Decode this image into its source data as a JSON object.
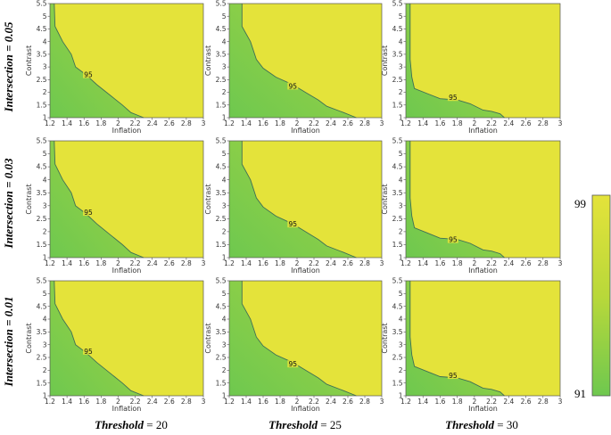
{
  "colors": {
    "low": "#6ec84f",
    "mid": "#b9d83a",
    "high": "#e4e33a",
    "contour": "#3f6f55",
    "frame": "#555555"
  },
  "grid": {
    "rows": [
      {
        "value": "0.05",
        "label": "Intersection = 0.05"
      },
      {
        "value": "0.03",
        "label": "Intersection = 0.03"
      },
      {
        "value": "0.01",
        "label": "Intersection = 0.01"
      }
    ],
    "cols": [
      {
        "value": "20",
        "label": "Threshold = 20"
      },
      {
        "value": "25",
        "label": "Threshold = 25"
      },
      {
        "value": "30",
        "label": "Threshold = 30"
      }
    ],
    "row_prefix": "Intersection",
    "col_prefix": "Threshold"
  },
  "colorbar": {
    "min": 91,
    "max": 99,
    "top_label": "99",
    "bottom_label": "91"
  },
  "chart_data": [
    {
      "type": "heatmap",
      "threshold": 20,
      "intersection": 0.05,
      "xlabel": "Inflation",
      "ylabel": "Contrast",
      "xlim": [
        1.2,
        3
      ],
      "ylim": [
        1,
        5.5
      ],
      "contour_level": 95,
      "contour_label": "95",
      "xticks": [
        1.2,
        1.4,
        1.6,
        1.8,
        2,
        2.2,
        2.4,
        2.6,
        2.8,
        3
      ],
      "yticks": [
        1,
        1.5,
        2,
        2.5,
        3,
        3.5,
        4,
        4.5,
        5,
        5.5
      ],
      "contour": [
        [
          1.25,
          5.5
        ],
        [
          1.26,
          4.6
        ],
        [
          1.35,
          4.0
        ],
        [
          1.45,
          3.5
        ],
        [
          1.5,
          3.0
        ],
        [
          1.62,
          2.7
        ],
        [
          1.75,
          2.3
        ],
        [
          1.9,
          1.9
        ],
        [
          2.05,
          1.5
        ],
        [
          2.15,
          1.2
        ],
        [
          2.3,
          1.0
        ]
      ],
      "label_at": [
        1.65,
        2.7
      ]
    },
    {
      "type": "heatmap",
      "threshold": 25,
      "intersection": 0.05,
      "xlabel": "Inflation",
      "ylabel": "Contrast",
      "xlim": [
        1.2,
        3
      ],
      "ylim": [
        1,
        5.5
      ],
      "contour_level": 95,
      "contour_label": "95",
      "xticks": [
        1.2,
        1.4,
        1.6,
        1.8,
        2,
        2.2,
        2.4,
        2.6,
        2.8,
        3
      ],
      "yticks": [
        1,
        1.5,
        2,
        2.5,
        3,
        3.5,
        4,
        4.5,
        5,
        5.5
      ],
      "contour": [
        [
          1.35,
          5.5
        ],
        [
          1.35,
          4.6
        ],
        [
          1.45,
          4.0
        ],
        [
          1.52,
          3.3
        ],
        [
          1.6,
          2.95
        ],
        [
          1.75,
          2.6
        ],
        [
          1.95,
          2.3
        ],
        [
          2.1,
          2.0
        ],
        [
          2.25,
          1.7
        ],
        [
          2.35,
          1.45
        ],
        [
          2.55,
          1.2
        ],
        [
          2.7,
          1.0
        ]
      ],
      "label_at": [
        1.95,
        2.25
      ]
    },
    {
      "type": "heatmap",
      "threshold": 30,
      "intersection": 0.05,
      "xlabel": "Inflation",
      "ylabel": "Contrast",
      "xlim": [
        1.2,
        3
      ],
      "ylim": [
        1,
        5.5
      ],
      "contour_level": 95,
      "contour_label": "95",
      "xticks": [
        1.2,
        1.4,
        1.6,
        1.8,
        2,
        2.2,
        2.4,
        2.6,
        2.8,
        3
      ],
      "yticks": [
        1,
        1.5,
        2,
        2.5,
        3,
        3.5,
        4,
        4.5,
        5,
        5.5
      ],
      "contour": [
        [
          1.25,
          5.5
        ],
        [
          1.25,
          3.3
        ],
        [
          1.27,
          2.6
        ],
        [
          1.3,
          2.15
        ],
        [
          1.45,
          1.95
        ],
        [
          1.6,
          1.75
        ],
        [
          1.8,
          1.7
        ],
        [
          1.95,
          1.55
        ],
        [
          2.1,
          1.3
        ],
        [
          2.2,
          1.25
        ],
        [
          2.3,
          1.15
        ],
        [
          2.35,
          1.0
        ]
      ],
      "label_at": [
        1.75,
        1.8
      ]
    },
    {
      "type": "heatmap",
      "threshold": 20,
      "intersection": 0.03,
      "xlabel": "Inflation",
      "ylabel": "Contrast",
      "xlim": [
        1.2,
        3
      ],
      "ylim": [
        1,
        5.5
      ],
      "contour_level": 95,
      "contour_label": "95",
      "xticks": [
        1.2,
        1.4,
        1.6,
        1.8,
        2,
        2.2,
        2.4,
        2.6,
        2.8,
        3
      ],
      "yticks": [
        1,
        1.5,
        2,
        2.5,
        3,
        3.5,
        4,
        4.5,
        5,
        5.5
      ],
      "contour": [
        [
          1.25,
          5.5
        ],
        [
          1.26,
          4.6
        ],
        [
          1.35,
          4.0
        ],
        [
          1.45,
          3.5
        ],
        [
          1.5,
          3.0
        ],
        [
          1.62,
          2.7
        ],
        [
          1.75,
          2.3
        ],
        [
          1.9,
          1.9
        ],
        [
          2.05,
          1.5
        ],
        [
          2.15,
          1.2
        ],
        [
          2.3,
          1.0
        ]
      ],
      "label_at": [
        1.65,
        2.75
      ]
    },
    {
      "type": "heatmap",
      "threshold": 25,
      "intersection": 0.03,
      "xlabel": "Inflation",
      "ylabel": "Contrast",
      "xlim": [
        1.2,
        3
      ],
      "ylim": [
        1,
        5.5
      ],
      "contour_level": 95,
      "contour_label": "95",
      "xticks": [
        1.2,
        1.4,
        1.6,
        1.8,
        2,
        2.2,
        2.4,
        2.6,
        2.8,
        3
      ],
      "yticks": [
        1,
        1.5,
        2,
        2.5,
        3,
        3.5,
        4,
        4.5,
        5,
        5.5
      ],
      "contour": [
        [
          1.35,
          5.5
        ],
        [
          1.35,
          4.6
        ],
        [
          1.45,
          4.0
        ],
        [
          1.52,
          3.3
        ],
        [
          1.6,
          2.95
        ],
        [
          1.75,
          2.6
        ],
        [
          1.95,
          2.3
        ],
        [
          2.1,
          2.0
        ],
        [
          2.25,
          1.7
        ],
        [
          2.35,
          1.45
        ],
        [
          2.55,
          1.2
        ],
        [
          2.7,
          1.0
        ]
      ],
      "label_at": [
        1.95,
        2.3
      ]
    },
    {
      "type": "heatmap",
      "threshold": 30,
      "intersection": 0.03,
      "xlabel": "Inflation",
      "ylabel": "Contrast",
      "xlim": [
        1.2,
        3
      ],
      "ylim": [
        1,
        5.5
      ],
      "contour_level": 95,
      "contour_label": "95",
      "xticks": [
        1.2,
        1.4,
        1.6,
        1.8,
        2,
        2.2,
        2.4,
        2.6,
        2.8,
        3
      ],
      "yticks": [
        1,
        1.5,
        2,
        2.5,
        3,
        3.5,
        4,
        4.5,
        5,
        5.5
      ],
      "contour": [
        [
          1.25,
          5.5
        ],
        [
          1.25,
          3.3
        ],
        [
          1.27,
          2.6
        ],
        [
          1.3,
          2.15
        ],
        [
          1.45,
          1.95
        ],
        [
          1.6,
          1.75
        ],
        [
          1.8,
          1.7
        ],
        [
          1.95,
          1.55
        ],
        [
          2.1,
          1.3
        ],
        [
          2.2,
          1.25
        ],
        [
          2.3,
          1.15
        ],
        [
          2.35,
          1.0
        ]
      ],
      "label_at": [
        1.75,
        1.7
      ]
    },
    {
      "type": "heatmap",
      "threshold": 20,
      "intersection": 0.01,
      "xlabel": "Inflation",
      "ylabel": "Contrast",
      "xlim": [
        1.2,
        3
      ],
      "ylim": [
        1,
        5.5
      ],
      "contour_level": 95,
      "contour_label": "95",
      "xticks": [
        1.2,
        1.4,
        1.6,
        1.8,
        2,
        2.2,
        2.4,
        2.6,
        2.8,
        3
      ],
      "yticks": [
        1,
        1.5,
        2,
        2.5,
        3,
        3.5,
        4,
        4.5,
        5,
        5.5
      ],
      "contour": [
        [
          1.25,
          5.5
        ],
        [
          1.26,
          4.6
        ],
        [
          1.35,
          4.0
        ],
        [
          1.45,
          3.5
        ],
        [
          1.5,
          3.0
        ],
        [
          1.62,
          2.7
        ],
        [
          1.75,
          2.3
        ],
        [
          1.9,
          1.9
        ],
        [
          2.05,
          1.5
        ],
        [
          2.15,
          1.2
        ],
        [
          2.3,
          1.0
        ]
      ],
      "label_at": [
        1.65,
        2.75
      ]
    },
    {
      "type": "heatmap",
      "threshold": 25,
      "intersection": 0.01,
      "xlabel": "Inflation",
      "ylabel": "Contrast",
      "xlim": [
        1.2,
        3
      ],
      "ylim": [
        1,
        5.5
      ],
      "contour_level": 95,
      "contour_label": "95",
      "xticks": [
        1.2,
        1.4,
        1.6,
        1.8,
        2,
        2.2,
        2.4,
        2.6,
        2.8,
        3
      ],
      "yticks": [
        1,
        1.5,
        2,
        2.5,
        3,
        3.5,
        4,
        4.5,
        5,
        5.5
      ],
      "contour": [
        [
          1.35,
          5.5
        ],
        [
          1.35,
          4.6
        ],
        [
          1.45,
          4.0
        ],
        [
          1.52,
          3.3
        ],
        [
          1.6,
          2.95
        ],
        [
          1.75,
          2.6
        ],
        [
          1.95,
          2.3
        ],
        [
          2.1,
          2.0
        ],
        [
          2.25,
          1.7
        ],
        [
          2.35,
          1.45
        ],
        [
          2.55,
          1.2
        ],
        [
          2.7,
          1.0
        ]
      ],
      "label_at": [
        1.95,
        2.25
      ]
    },
    {
      "type": "heatmap",
      "threshold": 30,
      "intersection": 0.01,
      "xlabel": "Inflation",
      "ylabel": "Contrast",
      "xlim": [
        1.2,
        3
      ],
      "ylim": [
        1,
        5.5
      ],
      "contour_level": 95,
      "contour_label": "95",
      "xticks": [
        1.2,
        1.4,
        1.6,
        1.8,
        2,
        2.2,
        2.4,
        2.6,
        2.8,
        3
      ],
      "yticks": [
        1,
        1.5,
        2,
        2.5,
        3,
        3.5,
        4,
        4.5,
        5,
        5.5
      ],
      "contour": [
        [
          1.25,
          5.5
        ],
        [
          1.25,
          3.3
        ],
        [
          1.27,
          2.6
        ],
        [
          1.3,
          2.15
        ],
        [
          1.45,
          1.95
        ],
        [
          1.6,
          1.75
        ],
        [
          1.8,
          1.7
        ],
        [
          1.95,
          1.55
        ],
        [
          2.1,
          1.3
        ],
        [
          2.2,
          1.25
        ],
        [
          2.3,
          1.15
        ],
        [
          2.35,
          1.0
        ]
      ],
      "label_at": [
        1.75,
        1.8
      ]
    }
  ]
}
